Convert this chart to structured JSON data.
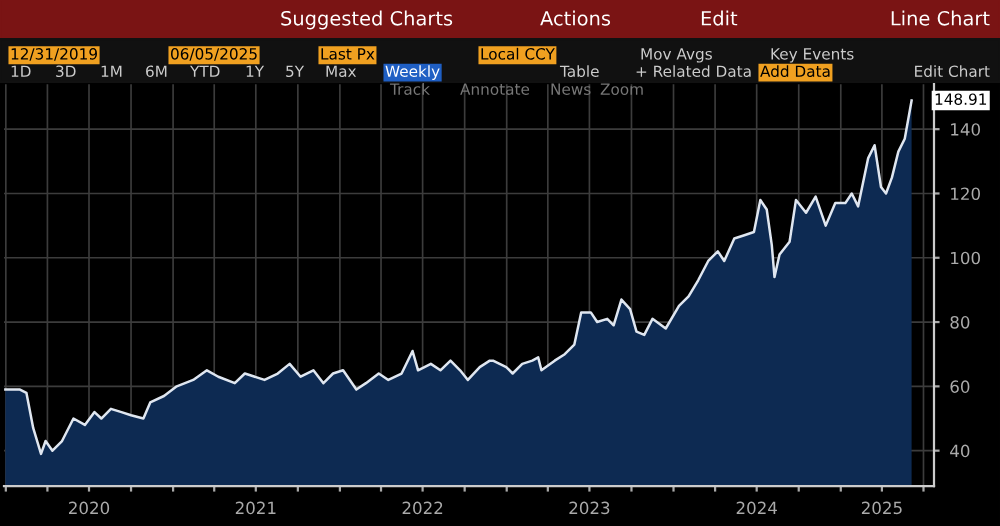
{
  "chart_data": {
    "type": "area",
    "x": [
      "2019-12-31",
      "2020-02-01",
      "2020-02-15",
      "2020-03-01",
      "2020-03-18",
      "2020-03-28",
      "2020-04-12",
      "2020-05-03",
      "2020-05-28",
      "2020-06-22",
      "2020-07-13",
      "2020-07-28",
      "2020-08-18",
      "2020-09-10",
      "2020-10-01",
      "2020-10-28",
      "2020-11-12",
      "2020-12-12",
      "2021-01-09",
      "2021-02-14",
      "2021-03-16",
      "2021-04-10",
      "2021-05-16",
      "2021-06-07",
      "2021-07-20",
      "2021-08-18",
      "2021-09-13",
      "2021-10-07",
      "2021-11-04",
      "2021-11-26",
      "2021-12-17",
      "2022-01-08",
      "2022-02-06",
      "2022-02-27",
      "2022-03-27",
      "2022-04-17",
      "2022-05-16",
      "2022-06-09",
      "2022-06-21",
      "2022-07-19",
      "2022-08-09",
      "2022-08-31",
      "2022-09-21",
      "2022-10-08",
      "2022-11-03",
      "2022-11-25",
      "2022-12-02",
      "2022-12-31",
      "2023-01-14",
      "2023-02-04",
      "2023-02-26",
      "2023-03-11",
      "2023-03-18",
      "2023-04-16",
      "2023-05-08",
      "2023-05-29",
      "2023-06-13",
      "2023-07-04",
      "2023-07-18",
      "2023-08-09",
      "2023-08-23",
      "2023-09-09",
      "2023-09-28",
      "2023-10-12",
      "2023-10-29",
      "2023-11-16",
      "2023-12-15",
      "2024-01-13",
      "2024-02-03",
      "2024-02-24",
      "2024-03-17",
      "2024-04-07",
      "2024-04-21",
      "2024-05-13",
      "2024-06-04",
      "2024-06-25",
      "2024-07-09",
      "2024-07-23",
      "2024-08-03",
      "2024-08-09",
      "2024-08-20",
      "2024-09-11",
      "2024-09-25",
      "2024-10-17",
      "2024-11-07",
      "2024-11-29",
      "2024-12-20",
      "2025-01-11",
      "2025-01-25",
      "2025-02-08",
      "2025-03-02",
      "2025-03-16",
      "2025-03-30",
      "2025-04-10",
      "2025-04-23",
      "2025-05-07",
      "2025-05-21",
      "2025-06-05"
    ],
    "series": [
      {
        "color": "#0d2a52",
        "values": [
          59,
          59,
          58,
          47,
          39,
          43,
          40,
          43,
          50,
          48,
          52,
          50,
          53,
          52,
          51,
          50,
          55,
          57,
          60,
          62,
          65,
          63,
          61,
          64,
          62,
          64,
          67,
          63,
          65,
          61,
          64,
          65,
          59,
          61,
          64,
          62,
          64,
          71,
          65,
          67,
          65,
          68,
          65,
          62,
          66,
          68,
          68,
          66,
          64,
          67,
          68,
          69,
          65,
          68,
          70,
          73,
          83,
          83,
          80,
          81,
          79,
          87,
          84,
          77,
          76,
          81,
          78,
          85,
          88,
          93,
          99,
          102,
          99,
          106,
          107,
          108,
          118,
          115,
          104,
          94,
          101,
          105,
          118,
          114,
          119,
          110,
          117,
          117,
          120,
          116,
          131,
          135,
          122,
          120,
          125,
          133,
          137,
          148.91
        ]
      }
    ],
    "xlim": [
      "2019-12-28",
      "2025-07-24"
    ],
    "xticks": [
      {
        "value": "2020-01-01",
        "label": null
      },
      {
        "value": "2020-04-01",
        "label": null
      },
      {
        "value": "2020-07-01",
        "label": "2020"
      },
      {
        "value": "2020-10-01",
        "label": null
      },
      {
        "value": "2021-01-01",
        "label": null
      },
      {
        "value": "2021-04-01",
        "label": null
      },
      {
        "value": "2021-07-01",
        "label": "2021"
      },
      {
        "value": "2021-10-01",
        "label": null
      },
      {
        "value": "2022-01-01",
        "label": null
      },
      {
        "value": "2022-04-01",
        "label": null
      },
      {
        "value": "2022-07-01",
        "label": "2022"
      },
      {
        "value": "2022-10-01",
        "label": null
      },
      {
        "value": "2023-01-01",
        "label": null
      },
      {
        "value": "2023-04-01",
        "label": null
      },
      {
        "value": "2023-07-01",
        "label": "2023"
      },
      {
        "value": "2023-10-01",
        "label": null
      },
      {
        "value": "2024-01-01",
        "label": null
      },
      {
        "value": "2024-04-01",
        "label": null
      },
      {
        "value": "2024-07-01",
        "label": "2024"
      },
      {
        "value": "2024-10-01",
        "label": null
      },
      {
        "value": "2025-01-01",
        "label": null
      },
      {
        "value": "2025-04-01",
        "label": "2025"
      },
      {
        "value": "2025-07-01",
        "label": null
      }
    ],
    "ylim": [
      29,
      154
    ],
    "yticks": [
      40,
      60,
      80,
      100,
      120,
      140
    ],
    "grid": true,
    "annotations": [
      {
        "text": "148.91",
        "x": "2025-06-05",
        "y": 148.91
      },
      "Suggested Charts",
      "Actions",
      "Edit",
      "Line Chart",
      "12/31/2019",
      "06/05/2025",
      "Last Px",
      "Local CCY",
      "Mov Avgs",
      "Key Events",
      "1D",
      "3D",
      "1M",
      "6M",
      "YTD",
      "1Y",
      "5Y",
      "Max",
      "Weekly",
      "Table",
      "+ Related Data",
      "Add Data",
      "Edit Chart",
      "Track",
      "Annotate",
      "News",
      "Zoom"
    ]
  }
}
